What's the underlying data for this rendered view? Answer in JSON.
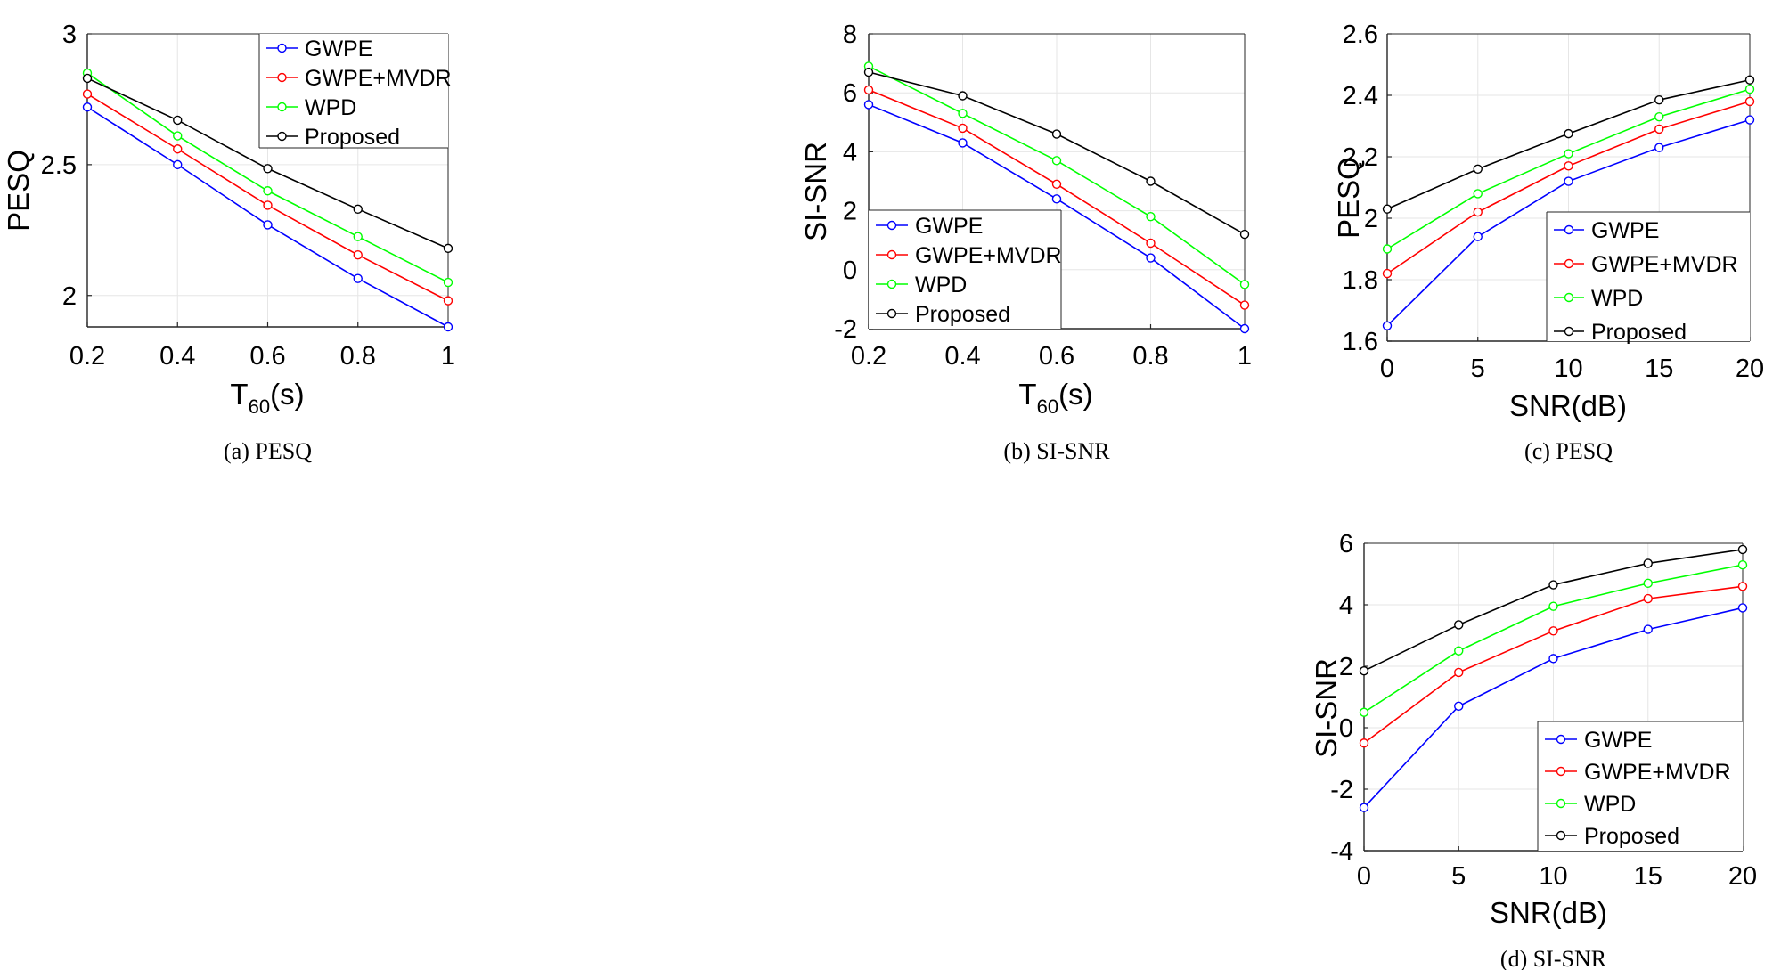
{
  "legend_entries": [
    "GWPE",
    "GWPE+MVDR",
    "WPD",
    "Proposed"
  ],
  "series_colors": {
    "GWPE": "#0000ff",
    "GWPE+MVDR": "#ff0000",
    "WPD": "#00ff00",
    "Proposed": "#000000"
  },
  "chart_data": [
    {
      "type": "line",
      "caption": "(a) PESQ",
      "ylabel": "PESQ",
      "xlabel_main": "T",
      "xlabel_sub": "60",
      "xlabel_tail": "(s)",
      "xlim": [
        0.2,
        1
      ],
      "ylim": [
        1.88,
        3
      ],
      "xticks": [
        0.2,
        0.4,
        0.6,
        0.8,
        1
      ],
      "xtick_labels": [
        "0.2",
        "0.4",
        "0.6",
        "0.8",
        "1"
      ],
      "yticks": [
        2,
        2.5,
        3
      ],
      "ytick_labels": [
        "2",
        "2.5",
        "3"
      ],
      "legend_position": "top-right",
      "x": [
        0.2,
        0.4,
        0.6,
        0.8,
        1
      ],
      "series": [
        {
          "name": "GWPE",
          "values": [
            2.72,
            2.5,
            2.27,
            2.065,
            1.88
          ]
        },
        {
          "name": "GWPE+MVDR",
          "values": [
            2.77,
            2.56,
            2.345,
            2.155,
            1.98
          ]
        },
        {
          "name": "WPD",
          "values": [
            2.85,
            2.61,
            2.4,
            2.225,
            2.05
          ]
        },
        {
          "name": "Proposed",
          "values": [
            2.83,
            2.67,
            2.485,
            2.33,
            2.18
          ]
        }
      ]
    },
    {
      "type": "line",
      "caption": "(b) SI-SNR",
      "ylabel": "SI-SNR",
      "xlabel_main": "T",
      "xlabel_sub": "60",
      "xlabel_tail": "(s)",
      "xlim": [
        0.2,
        1
      ],
      "ylim": [
        -2,
        8
      ],
      "xticks": [
        0.2,
        0.4,
        0.6,
        0.8,
        1
      ],
      "xtick_labels": [
        "0.2",
        "0.4",
        "0.6",
        "0.8",
        "1"
      ],
      "yticks": [
        -2,
        0,
        2,
        4,
        6,
        8
      ],
      "ytick_labels": [
        "-2",
        "0",
        "2",
        "4",
        "6",
        "8"
      ],
      "legend_position": "bottom-left",
      "x": [
        0.2,
        0.4,
        0.6,
        0.8,
        1
      ],
      "series": [
        {
          "name": "GWPE",
          "values": [
            5.6,
            4.3,
            2.4,
            0.4,
            -2.0
          ]
        },
        {
          "name": "GWPE+MVDR",
          "values": [
            6.1,
            4.8,
            2.9,
            0.9,
            -1.2
          ]
        },
        {
          "name": "WPD",
          "values": [
            6.9,
            5.3,
            3.7,
            1.8,
            -0.5
          ]
        },
        {
          "name": "Proposed",
          "values": [
            6.7,
            5.9,
            4.6,
            3.0,
            1.2
          ]
        }
      ]
    },
    {
      "type": "line",
      "caption": "(c) PESQ",
      "ylabel": "PESQ",
      "xlabel_main": "SNR(dB)",
      "xlabel_sub": "",
      "xlabel_tail": "",
      "xlim": [
        0,
        20
      ],
      "ylim": [
        1.6,
        2.6
      ],
      "xticks": [
        0,
        5,
        10,
        15,
        20
      ],
      "xtick_labels": [
        "0",
        "5",
        "10",
        "15",
        "20"
      ],
      "yticks": [
        1.6,
        1.8,
        2,
        2.2,
        2.4,
        2.6
      ],
      "ytick_labels": [
        "1.6",
        "1.8",
        "2",
        "2.2",
        "2.4",
        "2.6"
      ],
      "legend_position": "bottom-right",
      "x": [
        0,
        5,
        10,
        15,
        20
      ],
      "series": [
        {
          "name": "GWPE",
          "values": [
            1.65,
            1.94,
            2.12,
            2.23,
            2.32
          ]
        },
        {
          "name": "GWPE+MVDR",
          "values": [
            1.82,
            2.02,
            2.17,
            2.29,
            2.38
          ]
        },
        {
          "name": "WPD",
          "values": [
            1.9,
            2.08,
            2.21,
            2.33,
            2.42
          ]
        },
        {
          "name": "Proposed",
          "values": [
            2.03,
            2.16,
            2.275,
            2.385,
            2.45
          ]
        }
      ]
    },
    {
      "type": "line",
      "caption": "(d) SI-SNR",
      "ylabel": "SI-SNR",
      "xlabel_main": "SNR(dB)",
      "xlabel_sub": "",
      "xlabel_tail": "",
      "xlim": [
        0,
        20
      ],
      "ylim": [
        -4,
        6
      ],
      "xticks": [
        0,
        5,
        10,
        15,
        20
      ],
      "xtick_labels": [
        "0",
        "5",
        "10",
        "15",
        "20"
      ],
      "yticks": [
        -4,
        -2,
        0,
        2,
        4,
        6
      ],
      "ytick_labels": [
        "-4",
        "-2",
        "0",
        "2",
        "4",
        "6"
      ],
      "legend_position": "bottom-right",
      "x": [
        0,
        5,
        10,
        15,
        20
      ],
      "series": [
        {
          "name": "GWPE",
          "values": [
            -2.6,
            0.7,
            2.25,
            3.2,
            3.9
          ]
        },
        {
          "name": "GWPE+MVDR",
          "values": [
            -0.5,
            1.8,
            3.15,
            4.2,
            4.6
          ]
        },
        {
          "name": "WPD",
          "values": [
            0.5,
            2.5,
            3.95,
            4.7,
            5.3
          ]
        },
        {
          "name": "Proposed",
          "values": [
            1.85,
            3.35,
            4.65,
            5.35,
            5.8
          ]
        }
      ]
    }
  ]
}
